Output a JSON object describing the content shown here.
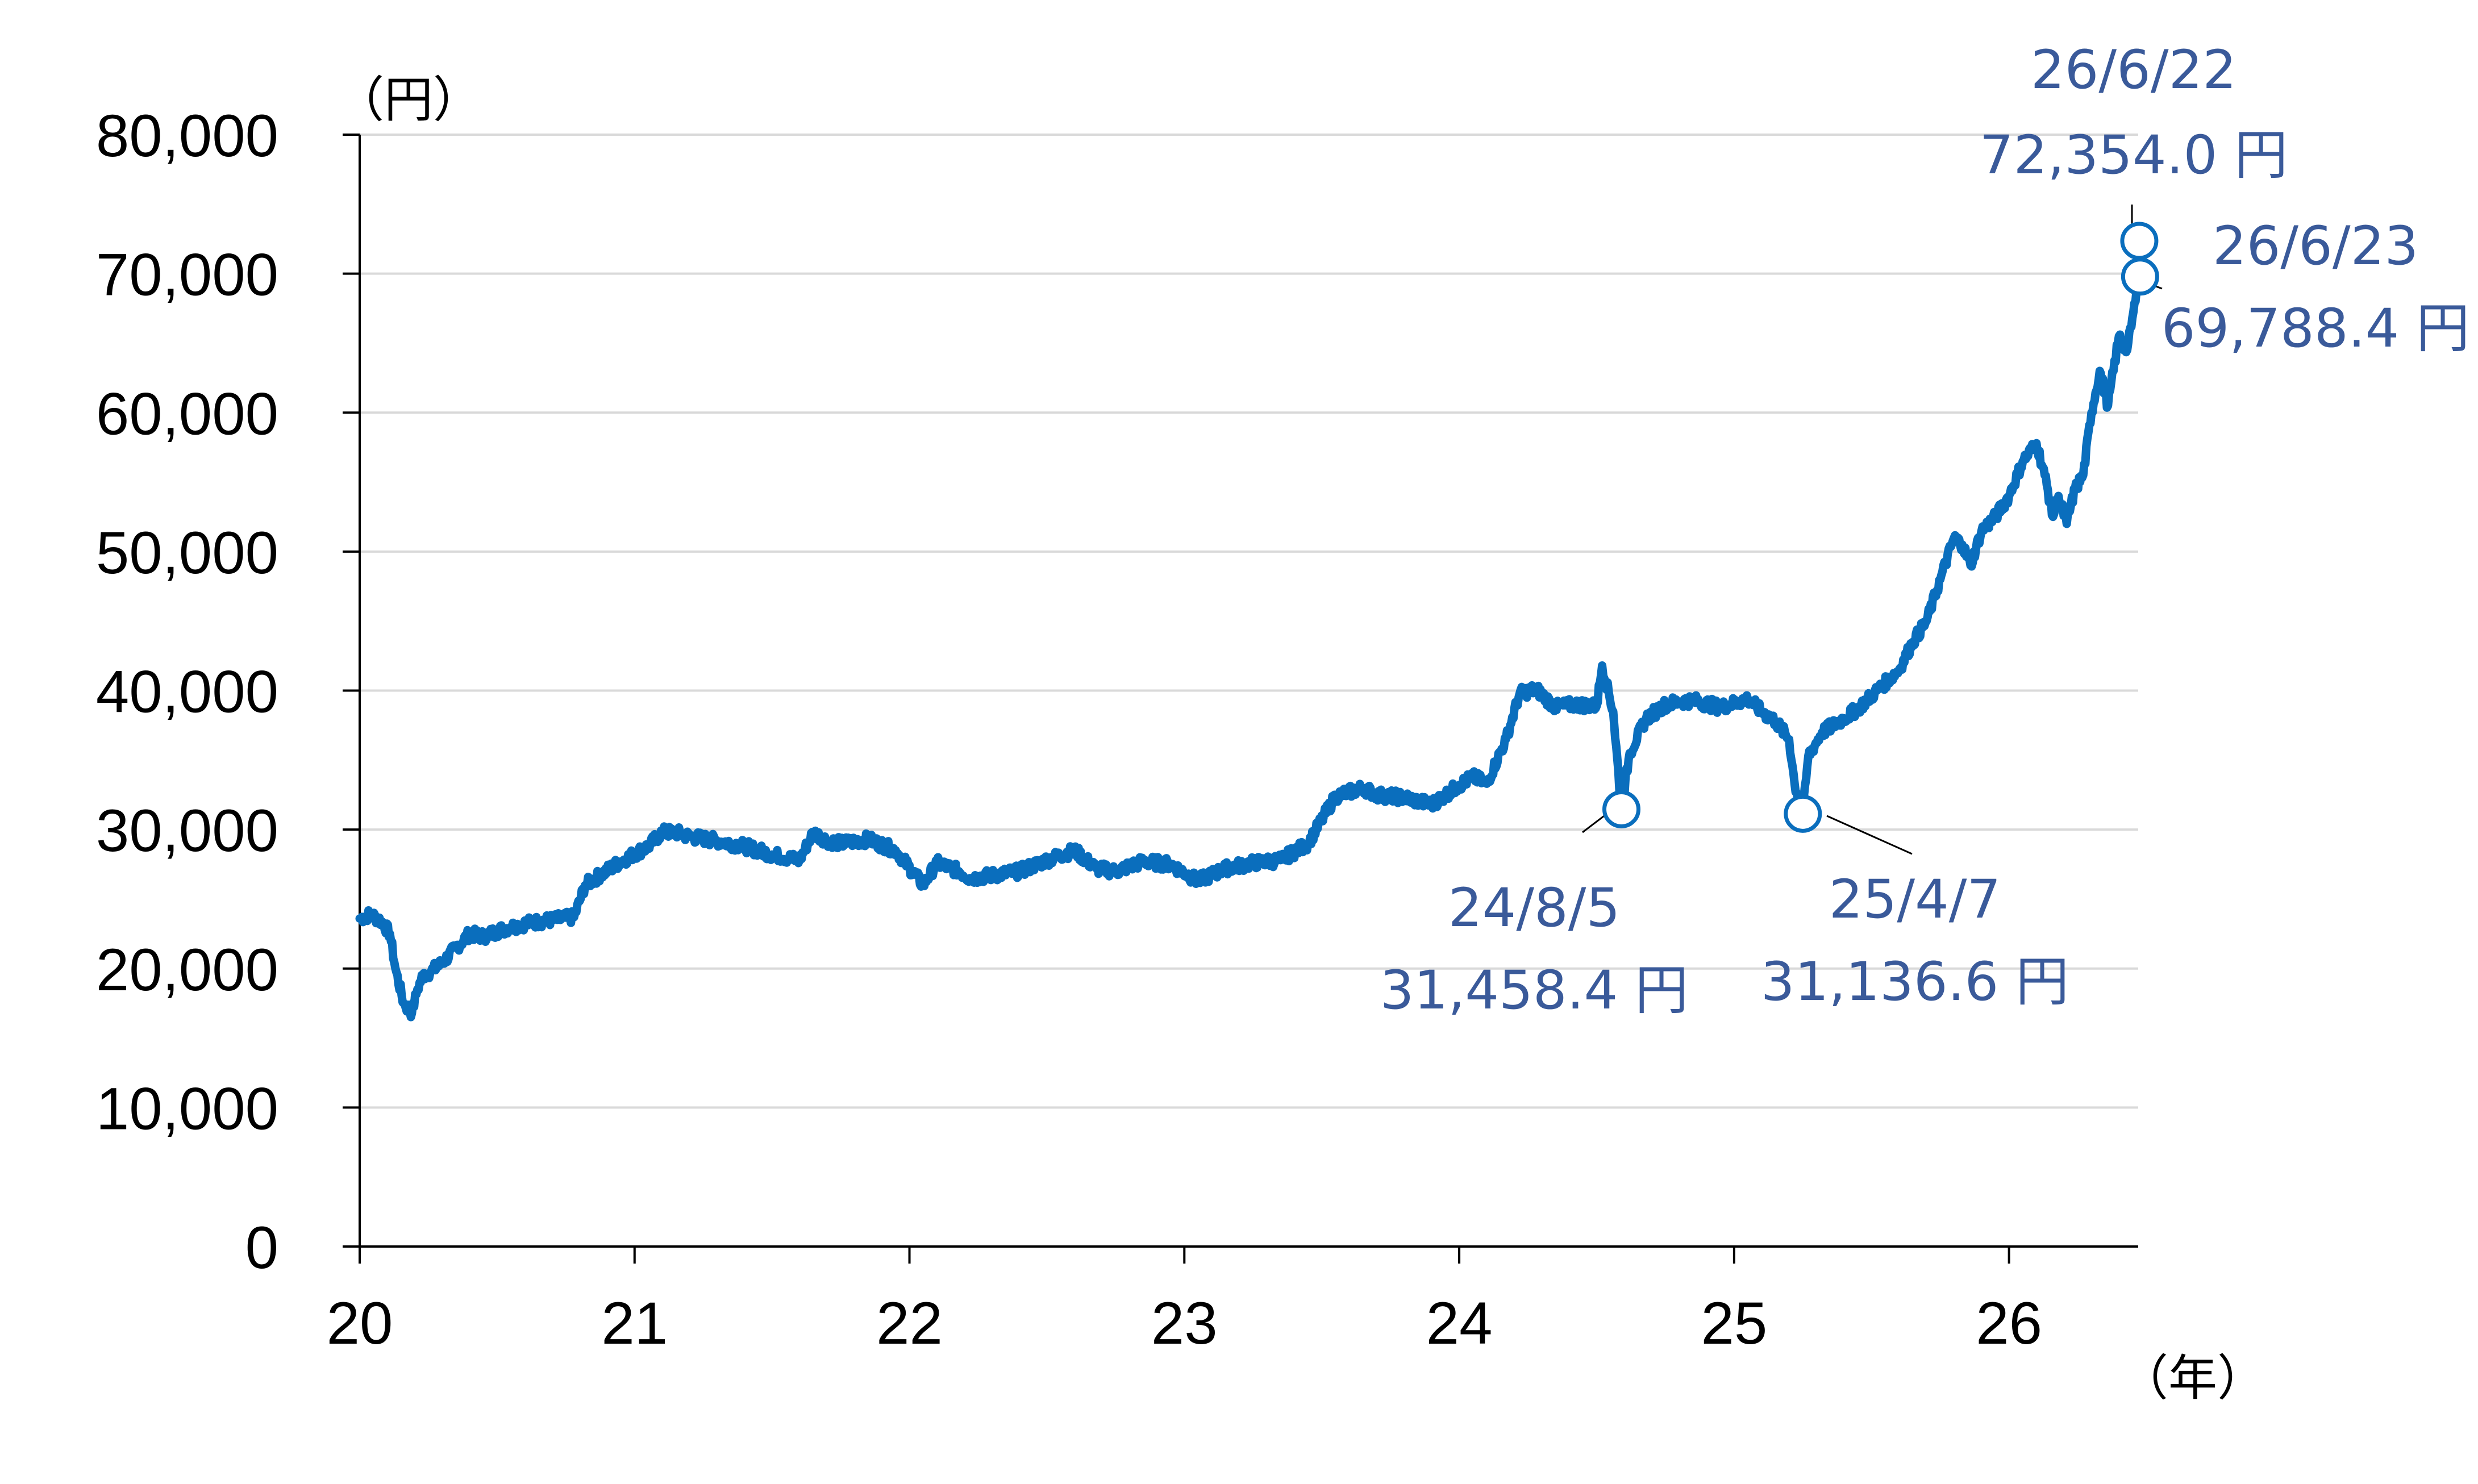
{
  "chart_data": {
    "type": "line",
    "y_unit_label": "（円）",
    "x_unit_label": "（年）",
    "xlim": [
      2020,
      2026.47
    ],
    "ylim": [
      0,
      80000
    ],
    "y_ticks": [
      0,
      10000,
      20000,
      30000,
      40000,
      50000,
      60000,
      70000,
      80000
    ],
    "y_tick_labels": [
      "0",
      "10,000",
      "20,000",
      "30,000",
      "40,000",
      "50,000",
      "60,000",
      "70,000",
      "80,000"
    ],
    "x_ticks": [
      2020,
      2021,
      2022,
      2023,
      2024,
      2025,
      2026
    ],
    "x_tick_labels": [
      "20",
      "21",
      "22",
      "23",
      "24",
      "25",
      "26"
    ],
    "grid": "horizontal",
    "colors": {
      "line": "#0A6EBD",
      "annotation_text": "#3A5A9A",
      "axis": "#000000",
      "grid": "#D9D9D9"
    },
    "series": [
      {
        "x": [
          2020.0,
          2020.04,
          2020.08,
          2020.11,
          2020.13,
          2020.16,
          2020.19,
          2020.21,
          2020.23,
          2020.26,
          2020.3,
          2020.35,
          2020.4,
          2020.45,
          2020.5,
          2020.55,
          2020.62,
          2020.7,
          2020.78,
          2020.82,
          2020.88,
          2020.95,
          2021.05,
          2021.1,
          2021.15,
          2021.2,
          2021.3,
          2021.4,
          2021.5,
          2021.6,
          2021.65,
          2021.7,
          2021.75,
          2021.85,
          2021.95,
          2022.05,
          2022.1,
          2022.18,
          2022.22,
          2022.3,
          2022.4,
          2022.5,
          2022.6,
          2022.68,
          2022.75,
          2022.85,
          2022.95,
          2023.05,
          2023.15,
          2023.25,
          2023.35,
          2023.45,
          2023.55,
          2023.65,
          2023.7,
          2023.8,
          2023.9,
          2024.0,
          2024.05,
          2024.1,
          2024.17,
          2024.22,
          2024.28,
          2024.35,
          2024.42,
          2024.5,
          2024.52,
          2024.56,
          2024.59,
          2024.62,
          2024.68,
          2024.75,
          2024.8,
          2024.85,
          2024.95,
          2025.05,
          2025.1,
          2025.15,
          2025.2,
          2025.22,
          2025.25,
          2025.27,
          2025.32,
          2025.4,
          2025.45,
          2025.52,
          2025.6,
          2025.65,
          2025.7,
          2025.75,
          2025.8,
          2025.83,
          2025.86,
          2025.9,
          2025.95,
          2026.0,
          2026.05,
          2026.1,
          2026.13,
          2026.16,
          2026.18,
          2026.21,
          2026.24,
          2026.27,
          2026.3,
          2026.33,
          2026.36,
          2026.4,
          2026.43,
          2026.46,
          2026.474,
          2026.477
        ],
        "values": [
          23600,
          23900,
          23400,
          22500,
          20000,
          17500,
          16800,
          18500,
          19500,
          19800,
          20400,
          21500,
          22500,
          22300,
          22700,
          23000,
          23300,
          23500,
          23700,
          26000,
          26800,
          27700,
          28800,
          29800,
          29800,
          29500,
          29200,
          28800,
          28200,
          27800,
          29800,
          29200,
          29000,
          29300,
          28500,
          26000,
          27600,
          27000,
          26500,
          26700,
          27000,
          27800,
          28500,
          27200,
          27000,
          27700,
          27500,
          26300,
          27200,
          27600,
          27800,
          29000,
          32400,
          33000,
          32500,
          32300,
          31800,
          33200,
          33800,
          33300,
          36500,
          39800,
          40100,
          38800,
          39000,
          38900,
          41800,
          38500,
          31458,
          35500,
          38000,
          39000,
          39200,
          39300,
          38800,
          39400,
          38500,
          37800,
          36500,
          33300,
          31137,
          35300,
          37000,
          38000,
          38700,
          40000,
          41500,
          43500,
          45000,
          48000,
          51000,
          50500,
          49000,
          51500,
          52500,
          54000,
          56500,
          57800,
          55500,
          52500,
          54000,
          52000,
          54500,
          55500,
          60000,
          63000,
          60500,
          65500,
          64500,
          68000,
          72354,
          69788
        ]
      }
    ],
    "annotations": [
      {
        "x": 2024.59,
        "y": 31458.4,
        "date": "24/8/5",
        "value": "31,458.4 円"
      },
      {
        "x": 2025.25,
        "y": 31136.6,
        "date": "25/4/7",
        "value": "31,136.6 円"
      },
      {
        "x": 2026.474,
        "y": 72354.0,
        "date": "26/6/22",
        "value": "72,354.0 円"
      },
      {
        "x": 2026.477,
        "y": 69788.4,
        "date": "26/6/23",
        "value": "69,788.4 円"
      }
    ]
  }
}
